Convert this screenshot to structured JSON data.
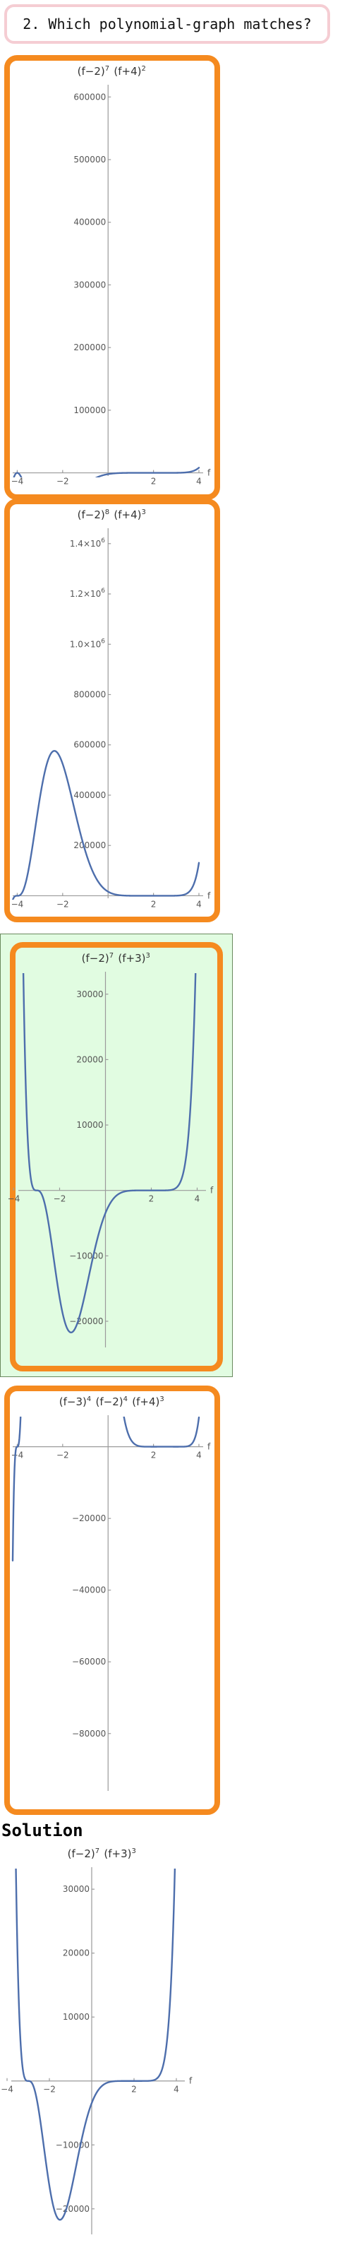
{
  "question": {
    "text": "2. Which polynomial-graph matches?"
  },
  "solution": {
    "heading": "Solution"
  },
  "colors": {
    "choice_border": "#f58a1f",
    "highlight_fill": "#e1fce1",
    "curve": "#4d6eac",
    "question_border": "#f5cdd3"
  },
  "chart_data": [
    {
      "type": "line",
      "title": "(f−2)^7 (f+4)^2",
      "xlabel": "f",
      "formula": {
        "factors": [
          {
            "root": 2,
            "power": 7
          },
          {
            "root": -4,
            "power": 2
          }
        ]
      },
      "xlim": [
        -4.2,
        4.0
      ],
      "ylim": [
        -5000,
        615000
      ],
      "x_ticks": [
        -4,
        -2,
        2,
        4
      ],
      "x_tick_labels": [
        "−4",
        "−2",
        "2",
        "4"
      ],
      "y_ticks": [
        100000,
        200000,
        300000,
        400000,
        500000,
        600000
      ],
      "y_tick_labels": [
        "100000",
        "200000",
        "300000",
        "400000",
        "500000",
        "600000"
      ]
    },
    {
      "type": "line",
      "title": "(f−2)^8 (f+4)^3",
      "xlabel": "f",
      "formula": {
        "factors": [
          {
            "root": 2,
            "power": 8
          },
          {
            "root": -4,
            "power": 3
          }
        ]
      },
      "xlim": [
        -4.2,
        4.0
      ],
      "ylim": [
        -10000,
        1450000
      ],
      "x_ticks": [
        -4,
        -2,
        2,
        4
      ],
      "x_tick_labels": [
        "−4",
        "−2",
        "2",
        "4"
      ],
      "y_ticks": [
        200000,
        400000,
        600000,
        800000,
        1000000,
        1200000,
        1400000
      ],
      "y_tick_labels": [
        "200000",
        "400000",
        "600000",
        "800000",
        "1.0×10^6",
        "1.2×10^6",
        "1.4×10^6"
      ]
    },
    {
      "type": "line",
      "title": "(f−2)^7 (f+3)^3",
      "xlabel": "f",
      "highlighted": true,
      "formula": {
        "factors": [
          {
            "root": 2,
            "power": 7
          },
          {
            "root": -3,
            "power": 3
          }
        ]
      },
      "xlim": [
        -3.8,
        4.2
      ],
      "ylim": [
        -24000,
        33000
      ],
      "x_ticks": [
        -4,
        -2,
        2,
        4
      ],
      "x_tick_labels": [
        "−4",
        "−2",
        "2",
        "4"
      ],
      "y_ticks": [
        -20000,
        -10000,
        10000,
        20000,
        30000
      ],
      "y_tick_labels": [
        "−20000",
        "−10000",
        "10000",
        "20000",
        "30000"
      ]
    },
    {
      "type": "line",
      "title": "(f−3)^4 (f−2)^4 (f+4)^3",
      "xlabel": "f",
      "formula": {
        "factors": [
          {
            "root": 3,
            "power": 4
          },
          {
            "root": 2,
            "power": 4
          },
          {
            "root": -4,
            "power": 3
          }
        ]
      },
      "xlim": [
        -4.2,
        4.0
      ],
      "ylim": [
        -96000,
        8000
      ],
      "x_ticks": [
        -4,
        -2,
        2,
        4
      ],
      "x_tick_labels": [
        "−4",
        "−2",
        "2",
        "4"
      ],
      "y_ticks": [
        -80000,
        -60000,
        -40000,
        -20000
      ],
      "y_tick_labels": [
        "−80000",
        "−60000",
        "−40000",
        "−20000"
      ]
    },
    {
      "type": "line",
      "title": "(f−2)^7 (f+3)^3",
      "xlabel": "f",
      "formula": {
        "factors": [
          {
            "root": 2,
            "power": 7
          },
          {
            "root": -3,
            "power": 3
          }
        ]
      },
      "xlim": [
        -3.8,
        4.2
      ],
      "ylim": [
        -24000,
        33000
      ],
      "x_ticks": [
        -4,
        -2,
        2,
        4
      ],
      "x_tick_labels": [
        "−4",
        "−2",
        "2",
        "4"
      ],
      "y_ticks": [
        -20000,
        -10000,
        10000,
        20000,
        30000
      ],
      "y_tick_labels": [
        "−20000",
        "−10000",
        "10000",
        "20000",
        "30000"
      ]
    }
  ]
}
